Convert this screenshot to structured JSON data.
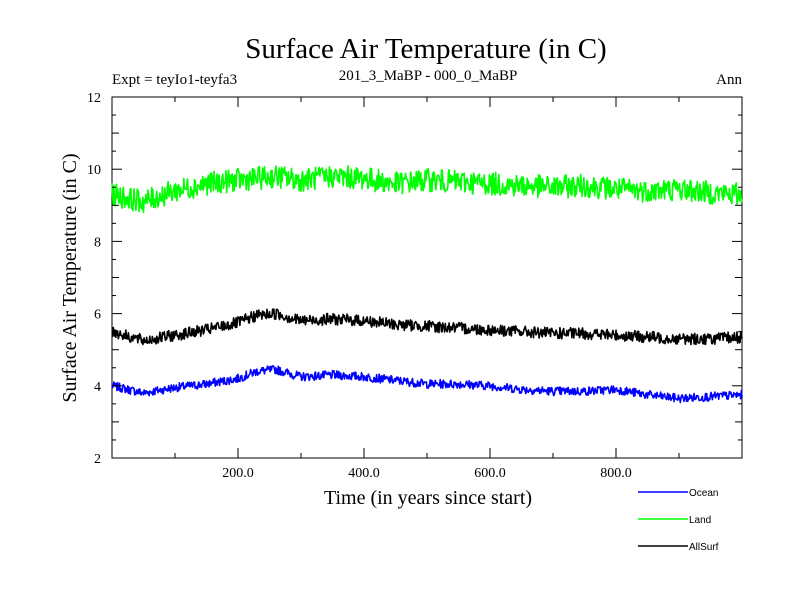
{
  "chart_data": {
    "type": "line",
    "title": "Surface Air Temperature (in C)",
    "subtitle_left": "Expt = teyIo1-teyfa3",
    "subtitle_center": "201_3_MaBP - 000_0_MaBP",
    "subtitle_right": "Ann",
    "xlabel": "Time (in years since start)",
    "ylabel": "Surface Air Temperature (in C)",
    "xlim": [
      0,
      1000
    ],
    "ylim": [
      2,
      12
    ],
    "x_ticks": [
      200,
      400,
      600,
      800
    ],
    "x_tick_labels": [
      "200.0",
      "400.0",
      "600.0",
      "800.0"
    ],
    "y_ticks": [
      2,
      4,
      6,
      8,
      10,
      12
    ],
    "y_tick_labels": [
      "2",
      "4",
      "6",
      "8",
      "10",
      "12"
    ],
    "grid": false,
    "legend_position": "bottom-right",
    "noise_seed": 7,
    "series": [
      {
        "name": "Ocean",
        "color": "#0000ff",
        "noise": 0.12,
        "x": [
          0,
          50,
          100,
          150,
          200,
          230,
          260,
          300,
          350,
          400,
          450,
          500,
          550,
          600,
          650,
          700,
          750,
          800,
          850,
          900,
          950,
          1000
        ],
        "y": [
          4.0,
          3.8,
          3.95,
          4.05,
          4.2,
          4.4,
          4.45,
          4.25,
          4.3,
          4.25,
          4.15,
          4.05,
          4.05,
          4.0,
          3.9,
          3.85,
          3.85,
          3.9,
          3.75,
          3.65,
          3.7,
          3.75
        ]
      },
      {
        "name": "Land",
        "color": "#00ff00",
        "noise": 0.32,
        "x": [
          0,
          50,
          100,
          150,
          200,
          230,
          260,
          300,
          350,
          400,
          450,
          500,
          550,
          600,
          650,
          700,
          750,
          800,
          850,
          900,
          950,
          1000
        ],
        "y": [
          9.3,
          9.1,
          9.4,
          9.6,
          9.7,
          9.75,
          9.8,
          9.7,
          9.8,
          9.75,
          9.6,
          9.7,
          9.65,
          9.6,
          9.55,
          9.5,
          9.55,
          9.45,
          9.4,
          9.45,
          9.35,
          9.3
        ]
      },
      {
        "name": "AllSurf",
        "color": "#000000",
        "noise": 0.16,
        "x": [
          0,
          50,
          100,
          150,
          200,
          230,
          260,
          300,
          350,
          400,
          450,
          500,
          550,
          600,
          650,
          700,
          750,
          800,
          850,
          900,
          950,
          1000
        ],
        "y": [
          5.5,
          5.25,
          5.4,
          5.55,
          5.75,
          5.95,
          6.0,
          5.8,
          5.85,
          5.8,
          5.7,
          5.65,
          5.6,
          5.55,
          5.5,
          5.45,
          5.45,
          5.4,
          5.35,
          5.3,
          5.3,
          5.35
        ]
      }
    ]
  }
}
